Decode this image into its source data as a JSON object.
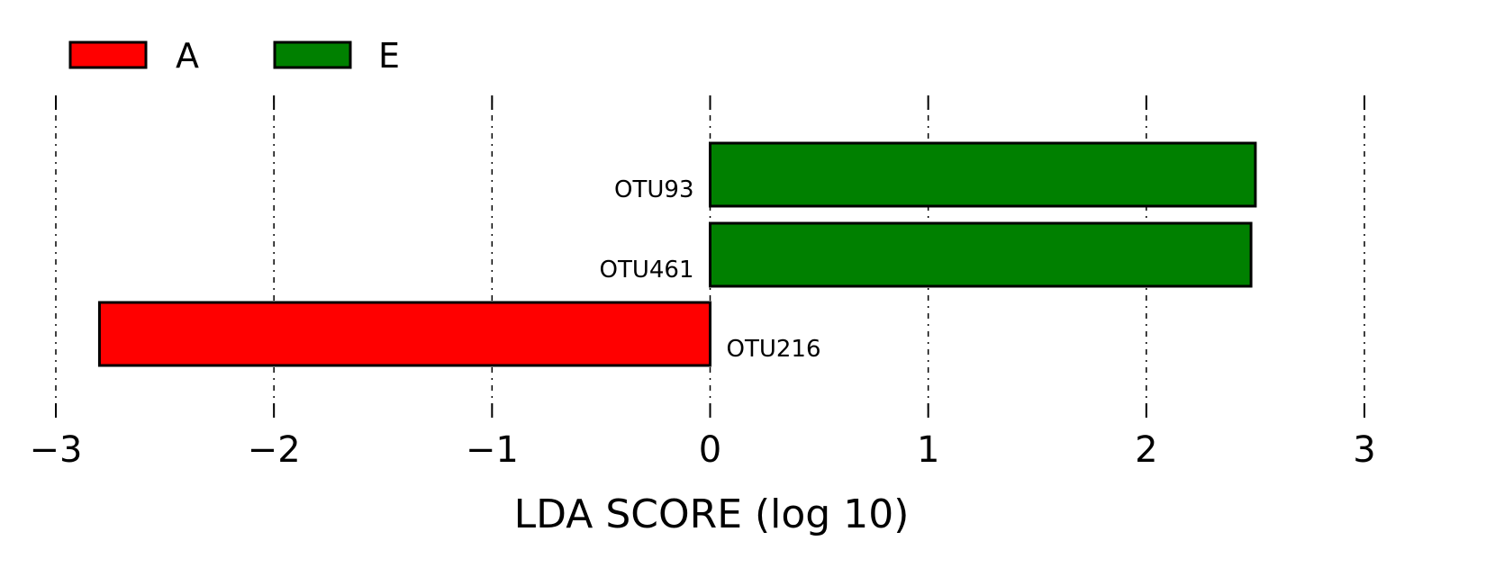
{
  "chart_data": {
    "type": "bar",
    "orientation": "horizontal",
    "xlabel": "LDA SCORE (log 10)",
    "xlim": [
      -3,
      3
    ],
    "xticks": [
      -3,
      -2,
      -1,
      0,
      1,
      2,
      3
    ],
    "xtick_labels": [
      "−3",
      "−2",
      "−1",
      "0",
      "1",
      "2",
      "3"
    ],
    "grid": "vertical dash-dot",
    "legend_position": "top-left",
    "legend": [
      {
        "label": "A",
        "color": "#ff0000"
      },
      {
        "label": "E",
        "color": "#008000"
      }
    ],
    "bars": [
      {
        "label": "OTU93",
        "value": 2.5,
        "group": "E",
        "color": "#008000"
      },
      {
        "label": "OTU461",
        "value": 2.48,
        "group": "E",
        "color": "#008000"
      },
      {
        "label": "OTU216",
        "value": -2.8,
        "group": "A",
        "color": "#ff0000"
      }
    ]
  }
}
